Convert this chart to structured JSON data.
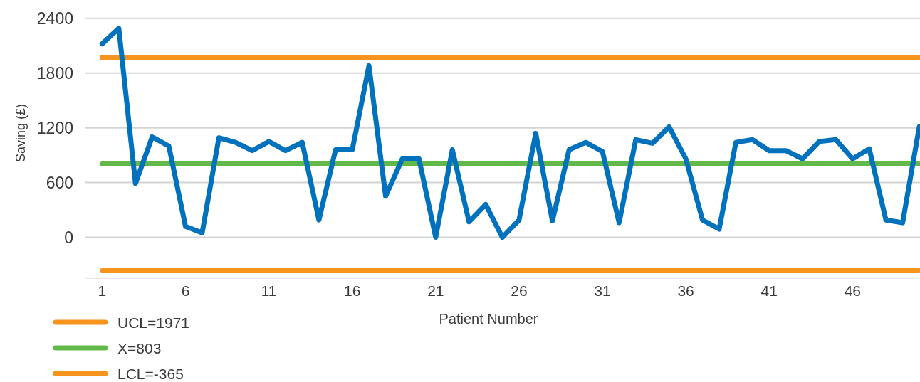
{
  "chart_data": {
    "type": "line",
    "xlabel": "Patient Number",
    "ylabel": "Saving (£)",
    "x": [
      1,
      2,
      3,
      4,
      5,
      6,
      7,
      8,
      9,
      10,
      11,
      12,
      13,
      14,
      15,
      16,
      17,
      18,
      19,
      20,
      21,
      22,
      23,
      24,
      25,
      26,
      27,
      28,
      29,
      30,
      31,
      32,
      33,
      34,
      35,
      36,
      37,
      38,
      39,
      40,
      41,
      42,
      43,
      44,
      45,
      46,
      47,
      48,
      49,
      50
    ],
    "series": [
      {
        "name": "UCL=1971",
        "color": "#f7941d",
        "values": [
          1971,
          1971,
          1971,
          1971,
          1971,
          1971,
          1971,
          1971,
          1971,
          1971,
          1971,
          1971,
          1971,
          1971,
          1971,
          1971,
          1971,
          1971,
          1971,
          1971,
          1971,
          1971,
          1971,
          1971,
          1971,
          1971,
          1971,
          1971,
          1971,
          1971,
          1971,
          1971,
          1971,
          1971,
          1971,
          1971,
          1971,
          1971,
          1971,
          1971,
          1971,
          1971,
          1971,
          1971,
          1971,
          1971,
          1971,
          1971,
          1971,
          1971
        ]
      },
      {
        "name": "X=803",
        "color": "#62b94a",
        "values": [
          803,
          803,
          803,
          803,
          803,
          803,
          803,
          803,
          803,
          803,
          803,
          803,
          803,
          803,
          803,
          803,
          803,
          803,
          803,
          803,
          803,
          803,
          803,
          803,
          803,
          803,
          803,
          803,
          803,
          803,
          803,
          803,
          803,
          803,
          803,
          803,
          803,
          803,
          803,
          803,
          803,
          803,
          803,
          803,
          803,
          803,
          803,
          803,
          803,
          803
        ]
      },
      {
        "name": "LCL=-365",
        "color": "#f7941d",
        "values": [
          -365,
          -365,
          -365,
          -365,
          -365,
          -365,
          -365,
          -365,
          -365,
          -365,
          -365,
          -365,
          -365,
          -365,
          -365,
          -365,
          -365,
          -365,
          -365,
          -365,
          -365,
          -365,
          -365,
          -365,
          -365,
          -365,
          -365,
          -365,
          -365,
          -365,
          -365,
          -365,
          -365,
          -365,
          -365,
          -365,
          -365,
          -365,
          -365,
          -365,
          -365,
          -365,
          -365,
          -365,
          -365,
          -365,
          -365,
          -365,
          -365,
          -365
        ]
      },
      {
        "color": "#0071bc",
        "values": [
          2120,
          2290,
          590,
          1100,
          1000,
          120,
          50,
          1090,
          1040,
          950,
          1050,
          950,
          1040,
          190,
          960,
          960,
          1880,
          450,
          860,
          860,
          0,
          960,
          170,
          360,
          0,
          190,
          1140,
          180,
          960,
          1040,
          940,
          160,
          1070,
          1030,
          1210,
          860,
          190,
          90,
          1040,
          1070,
          950,
          950,
          860,
          1050,
          1070,
          860,
          970,
          190,
          160,
          1210
        ]
      }
    ],
    "xlim": [
      0,
      50
    ],
    "xticks": [
      1,
      6,
      11,
      16,
      21,
      26,
      31,
      36,
      41,
      46
    ],
    "ylim": [
      -450,
      2400
    ],
    "yticks": [
      0,
      600,
      1200,
      1800,
      2400
    ],
    "grid": "y",
    "legend": "bottom left"
  }
}
